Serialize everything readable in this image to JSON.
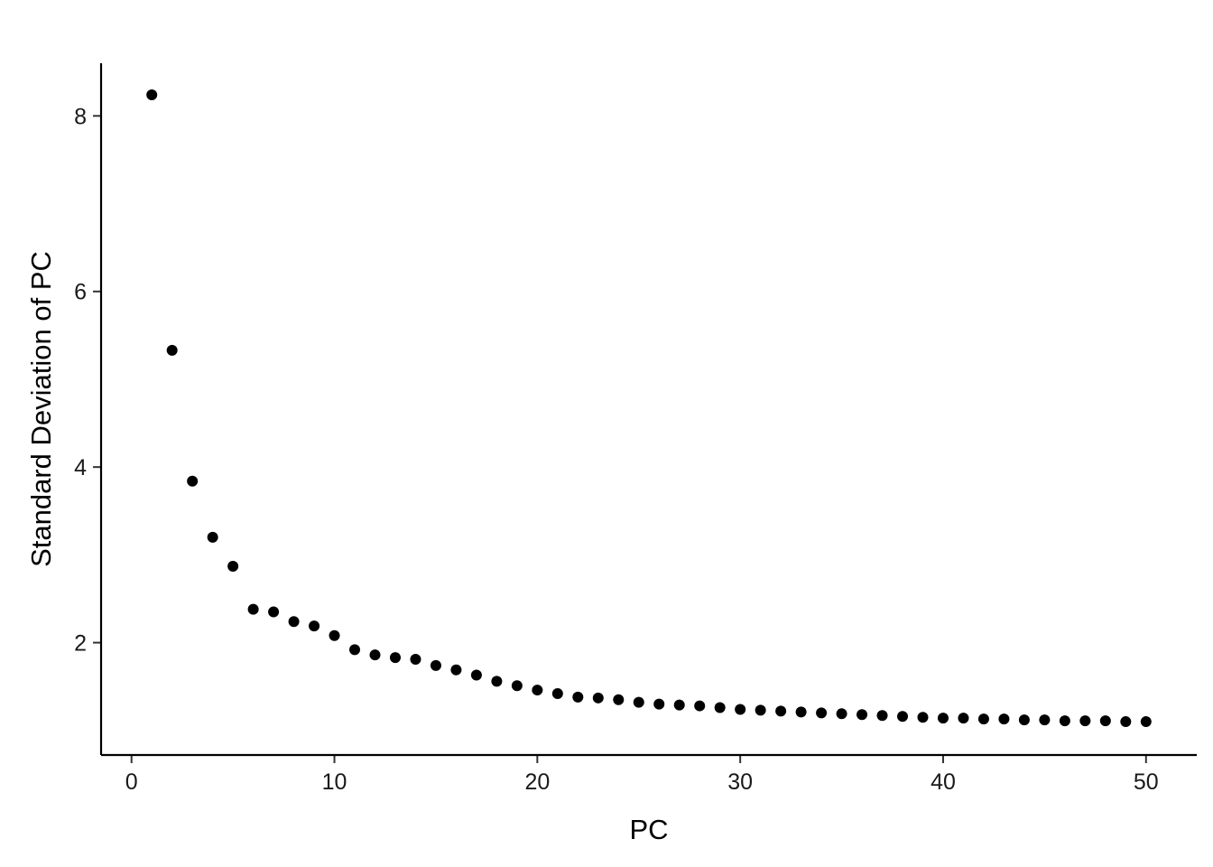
{
  "chart_data": {
    "type": "scatter",
    "title": "",
    "xlabel": "PC",
    "ylabel": "Standard Deviation of PC",
    "xlim": [
      -1.5,
      52.5
    ],
    "ylim": [
      0.72,
      8.6
    ],
    "x_ticks": [
      0,
      10,
      20,
      30,
      40,
      50
    ],
    "x_tick_labels": [
      "0",
      "10",
      "20",
      "30",
      "40",
      "50"
    ],
    "y_ticks": [
      2,
      4,
      6,
      8
    ],
    "y_tick_labels": [
      "2",
      "4",
      "6",
      "8"
    ],
    "grid": false,
    "legend": "none",
    "point_color": "#000000",
    "series": [
      {
        "x": [
          1,
          2,
          3,
          4,
          5,
          6,
          7,
          8,
          9,
          10,
          11,
          12,
          13,
          14,
          15,
          16,
          17,
          18,
          19,
          20,
          21,
          22,
          23,
          24,
          25,
          26,
          27,
          28,
          29,
          30,
          31,
          32,
          33,
          34,
          35,
          36,
          37,
          38,
          39,
          40,
          41,
          42,
          43,
          44,
          45,
          46,
          47,
          48,
          49,
          50
        ],
        "y": [
          8.24,
          5.33,
          3.84,
          3.2,
          2.87,
          2.38,
          2.35,
          2.24,
          2.19,
          2.08,
          1.92,
          1.86,
          1.83,
          1.81,
          1.74,
          1.69,
          1.63,
          1.56,
          1.51,
          1.46,
          1.42,
          1.38,
          1.37,
          1.35,
          1.32,
          1.3,
          1.29,
          1.28,
          1.26,
          1.24,
          1.23,
          1.22,
          1.21,
          1.2,
          1.19,
          1.18,
          1.17,
          1.16,
          1.15,
          1.14,
          1.14,
          1.13,
          1.13,
          1.12,
          1.12,
          1.11,
          1.11,
          1.11,
          1.1,
          1.1
        ]
      }
    ]
  }
}
